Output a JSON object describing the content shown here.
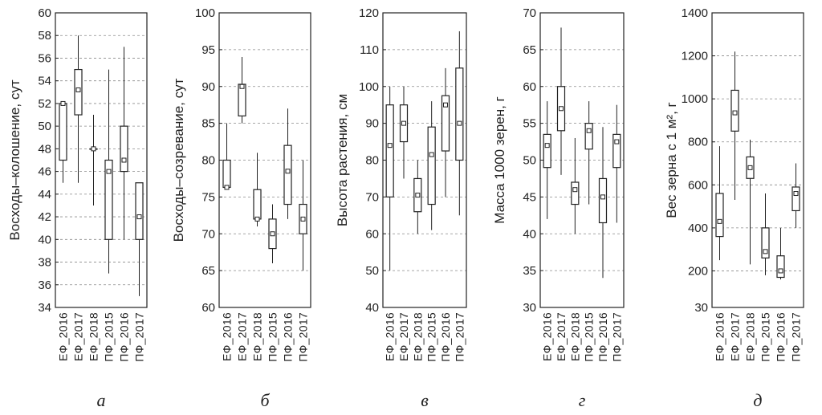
{
  "chart_data": [
    {
      "type": "box",
      "panel_label": "а",
      "ylabel": "Восходы–колошение, сут",
      "ylim": [
        34,
        60
      ],
      "yticks": [
        34,
        36,
        38,
        40,
        42,
        44,
        46,
        48,
        50,
        52,
        54,
        56,
        58,
        60
      ],
      "grid": true,
      "categories": [
        "ЕФ_2016",
        "ЕФ_2017",
        "ЕФ_2018",
        "ПФ_2015",
        "ПФ_2016",
        "ПФ_2017"
      ],
      "boxes": [
        {
          "min": 45,
          "q1": 47,
          "median": 52,
          "q3": 52,
          "max": 52
        },
        {
          "min": 45,
          "q1": 51,
          "median": 53.2,
          "q3": 55,
          "max": 58
        },
        {
          "min": 43,
          "q1": 48,
          "median": 48,
          "q3": 48,
          "max": 51
        },
        {
          "min": 37,
          "q1": 40,
          "median": 46,
          "q3": 47,
          "max": 55
        },
        {
          "min": 40,
          "q1": 46,
          "median": 47,
          "q3": 50,
          "max": 57
        },
        {
          "min": 35,
          "q1": 40,
          "median": 42,
          "q3": 45,
          "max": 45
        }
      ]
    },
    {
      "type": "box",
      "panel_label": "б",
      "ylabel": "Восходы–созревание, сут",
      "ylim": [
        60,
        100
      ],
      "yticks": [
        60,
        65,
        70,
        75,
        80,
        85,
        90,
        95,
        100
      ],
      "grid": true,
      "categories": [
        "ЕФ_2016",
        "ЕФ_2017",
        "ЕФ_2018",
        "ПФ_2015",
        "ПФ_2016",
        "ПФ_2017"
      ],
      "boxes": [
        {
          "min": 76,
          "q1": 76.3,
          "median": 76.3,
          "q3": 80,
          "max": 85
        },
        {
          "min": 85,
          "q1": 86,
          "median": 90,
          "q3": 90.3,
          "max": 94
        },
        {
          "min": 71,
          "q1": 72,
          "median": 72,
          "q3": 76,
          "max": 81
        },
        {
          "min": 66,
          "q1": 68,
          "median": 70,
          "q3": 72,
          "max": 74
        },
        {
          "min": 72,
          "q1": 74,
          "median": 78.5,
          "q3": 82,
          "max": 87
        },
        {
          "min": 65,
          "q1": 70,
          "median": 72,
          "q3": 74,
          "max": 80
        }
      ]
    },
    {
      "type": "box",
      "panel_label": "в",
      "ylabel": "Высота растения, см",
      "ylim": [
        40,
        120
      ],
      "yticks": [
        40,
        50,
        60,
        70,
        80,
        90,
        100,
        110,
        120
      ],
      "grid": true,
      "categories": [
        "ЕФ_2016",
        "ЕФ_2017",
        "ЕФ_2018",
        "ПФ_2015",
        "ПФ_2016",
        "ПФ_2017"
      ],
      "boxes": [
        {
          "min": 50,
          "q1": 70,
          "median": 84,
          "q3": 95,
          "max": 100
        },
        {
          "min": 75,
          "q1": 85,
          "median": 90,
          "q3": 95,
          "max": 100
        },
        {
          "min": 60,
          "q1": 66,
          "median": 70.5,
          "q3": 75,
          "max": 80
        },
        {
          "min": 61,
          "q1": 68,
          "median": 81.5,
          "q3": 89,
          "max": 96
        },
        {
          "min": 70,
          "q1": 82.5,
          "median": 95,
          "q3": 97.5,
          "max": 105
        },
        {
          "min": 65,
          "q1": 80,
          "median": 90,
          "q3": 105,
          "max": 115
        }
      ]
    },
    {
      "type": "box",
      "panel_label": "г",
      "ylabel": "Масса 1000 зерен, г",
      "ylim": [
        30,
        70
      ],
      "yticks": [
        30,
        35,
        40,
        45,
        50,
        55,
        60,
        65,
        70
      ],
      "grid": true,
      "categories": [
        "ЕФ_2016",
        "ЕФ_2017",
        "ЕФ_2018",
        "ПФ_2015",
        "ПФ_2016",
        "ПФ_2017"
      ],
      "boxes": [
        {
          "min": 42,
          "q1": 49,
          "median": 52,
          "q3": 53.5,
          "max": 58
        },
        {
          "min": 48,
          "q1": 54,
          "median": 57,
          "q3": 60,
          "max": 68
        },
        {
          "min": 40,
          "q1": 44,
          "median": 46,
          "q3": 47,
          "max": 53
        },
        {
          "min": 44,
          "q1": 51.5,
          "median": 54,
          "q3": 55,
          "max": 58
        },
        {
          "min": 34,
          "q1": 41.5,
          "median": 45,
          "q3": 47.5,
          "max": 54.5
        },
        {
          "min": 41.5,
          "q1": 49,
          "median": 52.5,
          "q3": 53.5,
          "max": 57.5
        }
      ]
    },
    {
      "type": "box",
      "panel_label": "д",
      "ylabel": "Вес зерна с 1 м², г",
      "ylim": [
        30,
        1400
      ],
      "yticks": [
        30,
        200,
        400,
        600,
        800,
        1000,
        1200,
        1400
      ],
      "grid": true,
      "categories": [
        "ЕФ_2016",
        "ЕФ_2017",
        "ЕФ_2018",
        "ПФ_2015",
        "ПФ_2016",
        "ПФ_2017"
      ],
      "boxes": [
        {
          "min": 250,
          "q1": 360,
          "median": 430,
          "q3": 560,
          "max": 780
        },
        {
          "min": 530,
          "q1": 850,
          "median": 935,
          "q3": 1040,
          "max": 1220
        },
        {
          "min": 230,
          "q1": 630,
          "median": 680,
          "q3": 730,
          "max": 810
        },
        {
          "min": 180,
          "q1": 260,
          "median": 290,
          "q3": 400,
          "max": 560
        },
        {
          "min": 160,
          "q1": 170,
          "median": 200,
          "q3": 270,
          "max": 400
        },
        {
          "min": 400,
          "q1": 480,
          "median": 560,
          "q3": 590,
          "max": 700
        }
      ]
    }
  ]
}
